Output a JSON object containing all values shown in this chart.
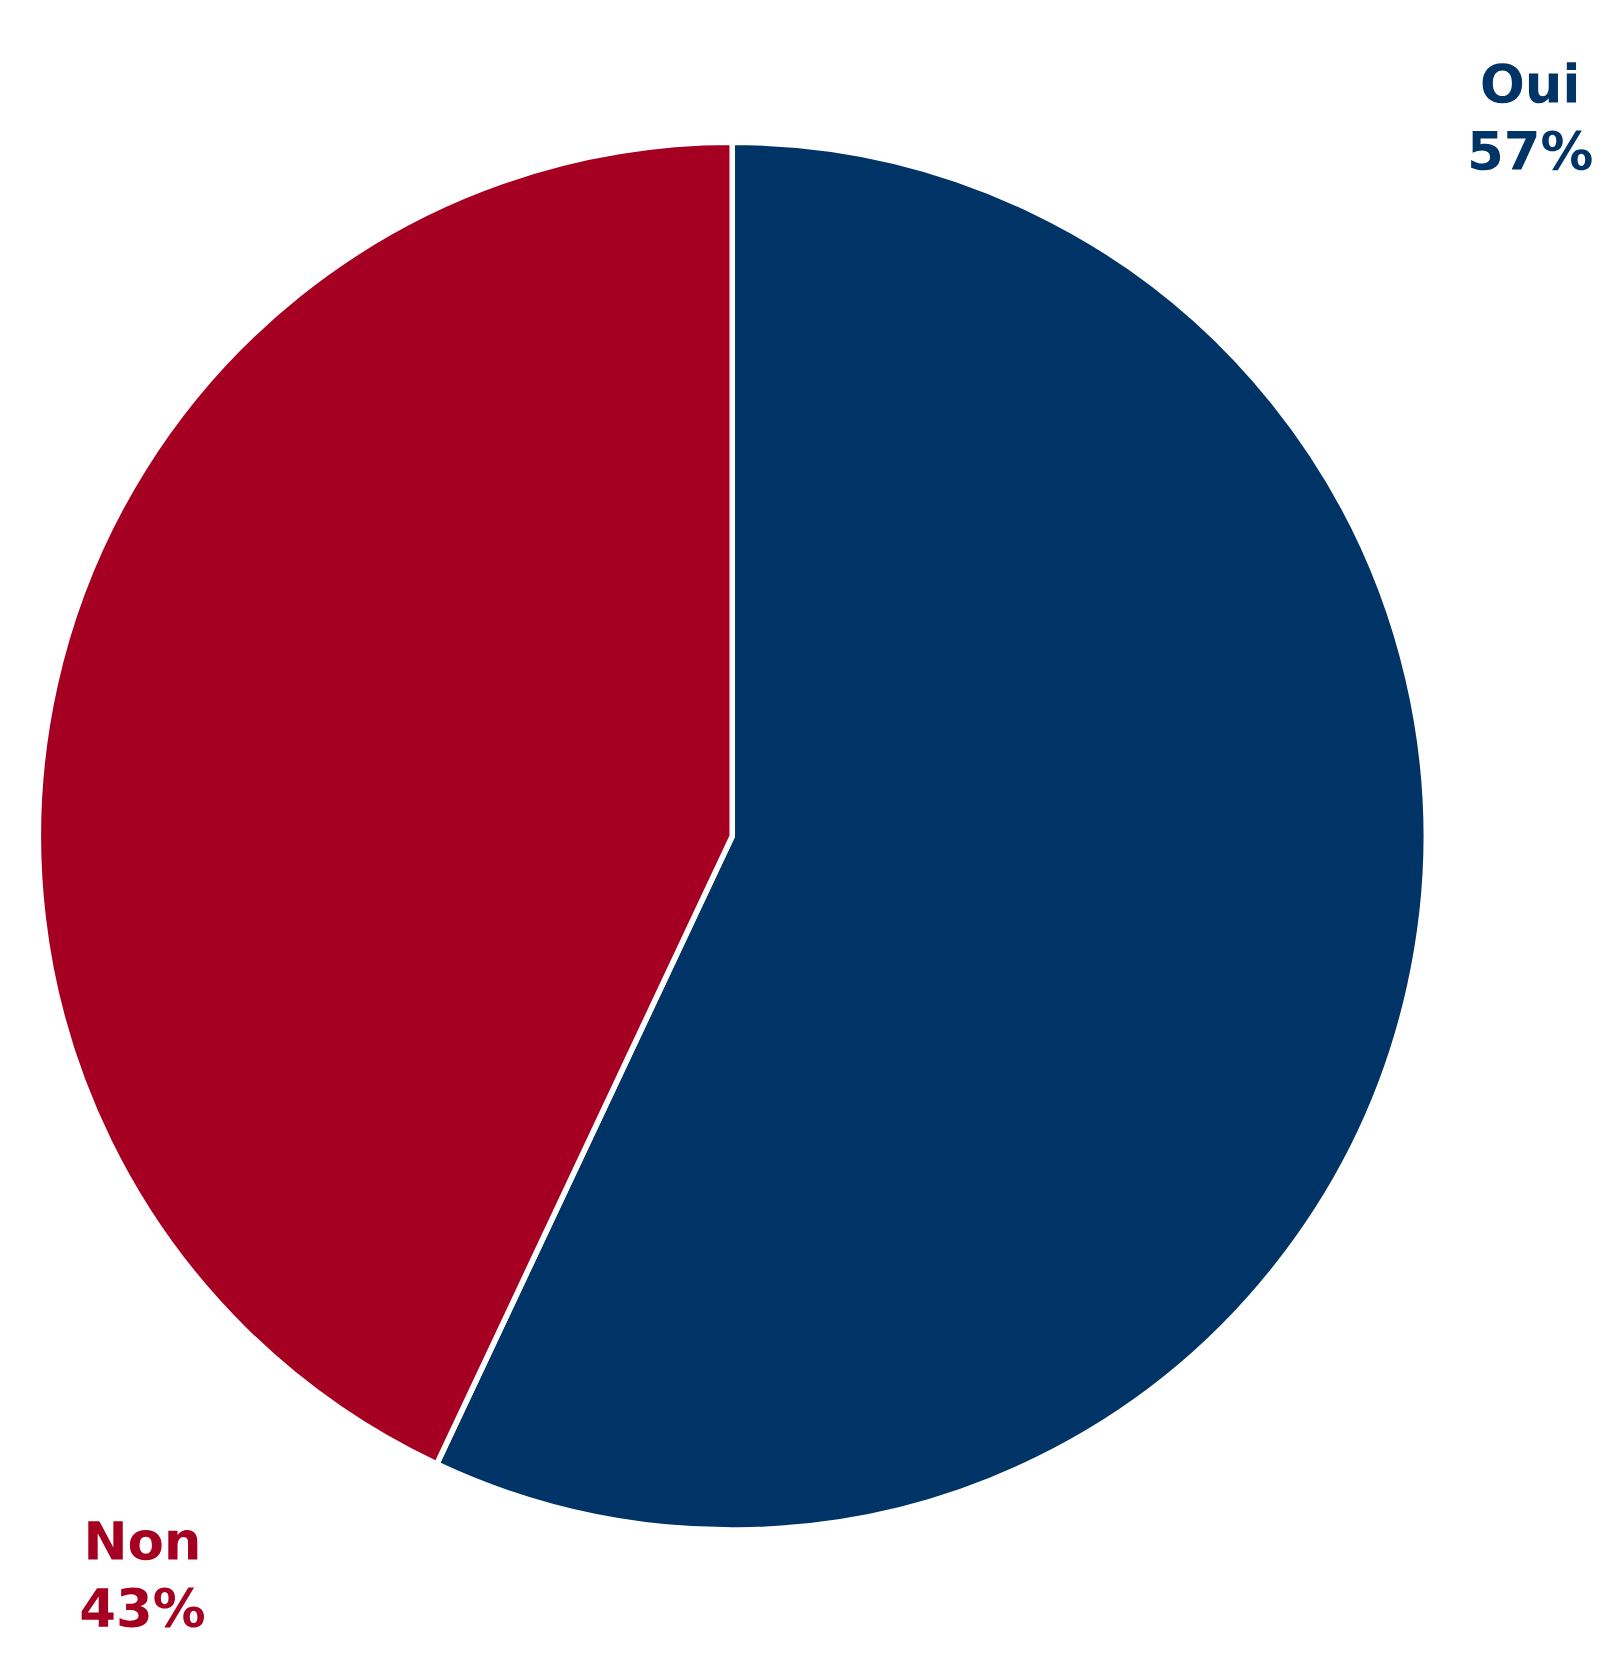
{
  "chart_data": {
    "type": "pie",
    "categories": [
      "Oui",
      "Non"
    ],
    "values": [
      57,
      43
    ],
    "colors": [
      "#003366",
      "#a50021"
    ],
    "value_labels": [
      "57%",
      "43%"
    ]
  }
}
